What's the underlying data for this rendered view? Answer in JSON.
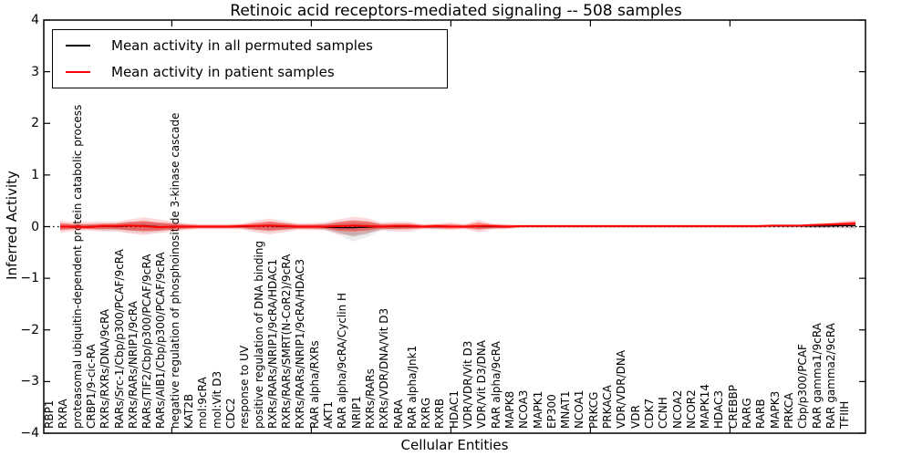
{
  "title": "Retinoic acid receptors-mediated signaling -- 508 samples",
  "axes": {
    "ylabel": "Inferred Activity",
    "xlabel": "Cellular Entities",
    "yticks": [
      4,
      3,
      2,
      1,
      0,
      -1,
      -2,
      -3,
      -4
    ],
    "ylim": [
      -4,
      4
    ]
  },
  "legend": {
    "items": [
      {
        "label": "Mean activity in all permuted samples",
        "color": "#000000"
      },
      {
        "label": "Mean activity in patient samples",
        "color": "#ff0000"
      }
    ]
  },
  "chart_data": {
    "type": "line",
    "title": "Retinoic acid receptors-mediated signaling -- 508 samples",
    "xlabel": "Cellular Entities",
    "ylabel": "Inferred Activity",
    "ylim": [
      -4,
      4
    ],
    "grid": false,
    "legend_position": "upper left",
    "zero_reference_line": true,
    "x_major_ticks": [
      8,
      18,
      28,
      38,
      48
    ],
    "categories": [
      "RBP1",
      "RXRA",
      "proteasomal ubiquitin-dependent protein catabolic process",
      "CRBP1/9-cic-RA",
      "RXRs/RXRs/DNA/9cRA",
      "RARs/Src-1/Cbp/p300/PCAF/9cRA",
      "RXRs/RARs/NRIP1/9cRA",
      "RARs/TIF2/Cbp/p300/PCAF/9cRA",
      "RARs/AIB1/Cbp/p300/PCAF/9cRA",
      "negative regulation of phosphoinositide 3-kinase cascade",
      "KAT2B",
      "mol:9cRA",
      "mol:Vit D3",
      "CDC2",
      "response to UV",
      "positive regulation of DNA binding",
      "RXRs/RARs/NRIP1/9cRA/HDAC1",
      "RXRs/RARs/SMRT(N-CoR2)/9cRA",
      "RXRs/RARs/NRIP1/9cRA/HDAC3",
      "RAR alpha/RXRs",
      "AKT1",
      "RAR alpha/9cRA/Cyclin H",
      "NRIP1",
      "RXRs/RARs",
      "RXRs/VDR/DNA/Vit D3",
      "RARA",
      "RAR alpha/Jnk1",
      "RXRG",
      "RXRB",
      "HDAC1",
      "VDR/VDR/Vit D3",
      "VDR/Vit D3/DNA",
      "RAR alpha/9cRA",
      "MAPK8",
      "NCOA3",
      "MAPK1",
      "EP300",
      "MNAT1",
      "NCOA1",
      "PRKCG",
      "PRKACA",
      "VDR/VDR/DNA",
      "VDR",
      "CDK7",
      "CCNH",
      "NCOA2",
      "NCOR2",
      "MAPK14",
      "HDAC3",
      "CREBBP",
      "RARG",
      "RARB",
      "MAPK3",
      "PRKCA",
      "Cbp/p300/PCAF",
      "RAR gamma1/9cRA",
      "RAR gamma2/9cRA",
      "TFIIH"
    ],
    "series": [
      {
        "name": "Mean activity in all permuted samples",
        "color": "#000000",
        "band_color": "#999999",
        "values": [
          0.0,
          -0.01,
          0.0,
          0.01,
          0.0,
          0.01,
          0.02,
          0.0,
          -0.01,
          0.0,
          0.0,
          0.0,
          0.0,
          0.0,
          0.01,
          0.01,
          0.0,
          0.0,
          0.0,
          -0.01,
          -0.02,
          -0.02,
          -0.01,
          0.0,
          0.0,
          0.0,
          0.0,
          0.0,
          0.0,
          0.0,
          0.0,
          0.0,
          0.0,
          0.01,
          0.01,
          0.01,
          0.01,
          0.01,
          0.01,
          0.01,
          0.01,
          0.01,
          0.01,
          0.01,
          0.01,
          0.01,
          0.01,
          0.01,
          0.01,
          0.01,
          0.01,
          0.01,
          0.01,
          0.01,
          0.01,
          0.01,
          0.02,
          0.02
        ],
        "band_upper": [
          0.04,
          0.03,
          0.03,
          0.04,
          0.05,
          0.07,
          0.08,
          0.06,
          0.05,
          0.03,
          0.02,
          0.02,
          0.02,
          0.02,
          0.04,
          0.06,
          0.05,
          0.03,
          0.03,
          0.04,
          0.06,
          0.08,
          0.07,
          0.04,
          0.03,
          0.03,
          0.02,
          0.03,
          0.02,
          0.02,
          0.03,
          0.03,
          0.02,
          0.01,
          0.01,
          0.01,
          0.01,
          0.01,
          0.01,
          0.01,
          0.01,
          0.01,
          0.01,
          0.01,
          0.01,
          0.01,
          0.01,
          0.01,
          0.01,
          0.01,
          0.01,
          0.01,
          0.01,
          0.01,
          0.02,
          0.02,
          0.02,
          0.03
        ],
        "band_lower": [
          -0.04,
          -0.03,
          -0.03,
          -0.05,
          -0.05,
          -0.07,
          -0.08,
          -0.07,
          -0.05,
          -0.03,
          -0.02,
          -0.02,
          -0.02,
          -0.02,
          -0.05,
          -0.07,
          -0.05,
          -0.03,
          -0.03,
          -0.05,
          -0.12,
          -0.2,
          -0.14,
          -0.05,
          -0.04,
          -0.03,
          -0.02,
          -0.03,
          -0.02,
          -0.02,
          -0.03,
          -0.03,
          -0.02,
          -0.01,
          -0.01,
          -0.01,
          -0.01,
          -0.01,
          -0.01,
          -0.01,
          -0.01,
          -0.01,
          -0.01,
          -0.01,
          -0.01,
          -0.01,
          -0.01,
          -0.01,
          -0.01,
          -0.01,
          -0.01,
          -0.01,
          -0.01,
          -0.01,
          -0.02,
          -0.02,
          -0.02,
          -0.03
        ]
      },
      {
        "name": "Mean activity in patient samples",
        "color": "#ff0000",
        "band_color": "#ff0000",
        "values": [
          0.0,
          0.0,
          -0.01,
          0.01,
          0.01,
          0.02,
          0.01,
          -0.01,
          0.0,
          0.0,
          0.0,
          0.0,
          0.0,
          0.01,
          0.01,
          0.02,
          0.01,
          0.0,
          0.0,
          0.0,
          0.01,
          0.02,
          0.01,
          0.0,
          0.01,
          0.01,
          0.0,
          0.01,
          0.0,
          0.0,
          0.01,
          0.01,
          0.0,
          0.01,
          0.01,
          0.01,
          0.01,
          0.01,
          0.01,
          0.01,
          0.01,
          0.01,
          0.01,
          0.01,
          0.01,
          0.01,
          0.01,
          0.01,
          0.01,
          0.01,
          0.01,
          0.02,
          0.02,
          0.02,
          0.03,
          0.04,
          0.05,
          0.06
        ],
        "band_upper": [
          0.07,
          0.05,
          0.05,
          0.06,
          0.06,
          0.09,
          0.11,
          0.08,
          0.06,
          0.04,
          0.03,
          0.03,
          0.03,
          0.04,
          0.07,
          0.1,
          0.07,
          0.04,
          0.04,
          0.05,
          0.09,
          0.12,
          0.1,
          0.05,
          0.06,
          0.06,
          0.03,
          0.04,
          0.05,
          0.03,
          0.08,
          0.04,
          0.03,
          0.02,
          0.02,
          0.02,
          0.02,
          0.02,
          0.02,
          0.02,
          0.02,
          0.02,
          0.02,
          0.02,
          0.02,
          0.02,
          0.02,
          0.02,
          0.02,
          0.02,
          0.02,
          0.03,
          0.03,
          0.03,
          0.05,
          0.06,
          0.08,
          0.1
        ],
        "band_lower": [
          -0.07,
          -0.05,
          -0.05,
          -0.05,
          -0.05,
          -0.07,
          -0.09,
          -0.08,
          -0.06,
          -0.04,
          -0.03,
          -0.03,
          -0.03,
          -0.03,
          -0.06,
          -0.08,
          -0.06,
          -0.04,
          -0.04,
          -0.04,
          -0.08,
          -0.09,
          -0.07,
          -0.04,
          -0.05,
          -0.05,
          -0.03,
          -0.03,
          -0.04,
          -0.03,
          -0.06,
          -0.03,
          -0.03,
          -0.01,
          -0.01,
          -0.01,
          -0.01,
          -0.01,
          -0.01,
          -0.01,
          -0.01,
          -0.01,
          -0.01,
          -0.01,
          -0.01,
          -0.01,
          -0.01,
          -0.01,
          -0.01,
          -0.01,
          -0.01,
          0.0,
          0.0,
          0.0,
          0.0,
          0.01,
          0.02,
          0.02
        ]
      }
    ]
  }
}
